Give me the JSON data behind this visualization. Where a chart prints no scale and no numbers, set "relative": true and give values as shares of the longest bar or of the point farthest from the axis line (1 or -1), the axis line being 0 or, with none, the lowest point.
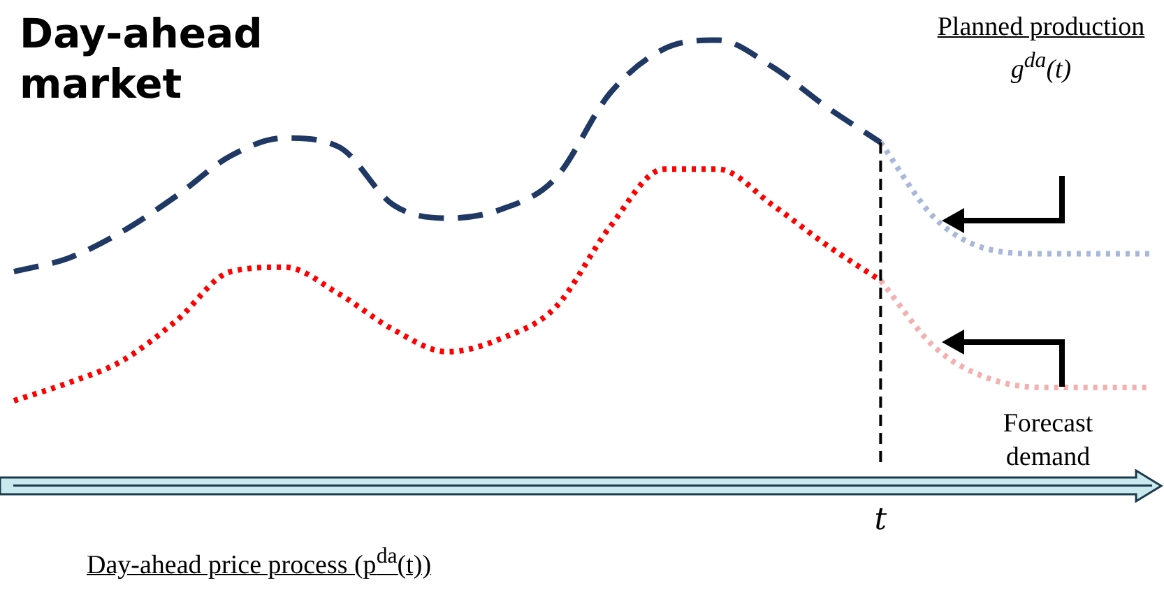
{
  "chart_data": {
    "type": "line",
    "relative": true,
    "title": "Day-ahead market",
    "xlabel": "Day-ahead price process (p$^{da}$(t))",
    "annotations": [
      "Planned production",
      "g$^{da}$(t)",
      "Forecast demand"
    ],
    "categories": [
      null,
      null,
      null,
      null,
      null,
      null,
      null,
      null,
      null,
      null,
      null,
      null,
      null,
      null,
      null,
      null,
      null,
      null,
      null,
      null,
      null,
      null
    ],
    "series": [
      {
        "color": "#1f3864",
        "line_style": "dashed",
        "values": [
          0.48,
          0.51,
          0.57,
          0.65,
          0.74,
          0.78,
          0.76,
          0.63,
          0.6,
          0.62,
          0.69,
          0.88,
          0.98,
          1,
          0.94,
          0.85,
          0.77,
          null,
          null,
          null,
          null,
          null
        ]
      },
      {
        "color": "#a9b8d8",
        "line_style": "dotted",
        "values": [
          null,
          null,
          null,
          null,
          null,
          null,
          null,
          null,
          null,
          null,
          null,
          null,
          null,
          null,
          null,
          null,
          0.77,
          0.6,
          0.53,
          0.52,
          0.52,
          0.52
        ]
      },
      {
        "color": "#ff0000",
        "line_style": "dotted",
        "values": [
          0.19,
          0.23,
          0.28,
          0.37,
          0.48,
          0.49,
          0.43,
          0.35,
          0.3,
          0.33,
          0.4,
          0.58,
          0.71,
          0.71,
          0.63,
          0.54,
          0.46,
          null,
          null,
          null,
          null,
          null
        ]
      },
      {
        "color": "#f4b0b0",
        "line_style": "dotted",
        "values": [
          null,
          null,
          null,
          null,
          null,
          null,
          null,
          null,
          null,
          null,
          null,
          null,
          null,
          null,
          null,
          null,
          0.46,
          0.31,
          0.24,
          0.22,
          0.22,
          0.22
        ]
      }
    ],
    "ref_lines": [
      {
        "axis": "x",
        "label": "t",
        "color": "#000000",
        "line_style": "dashed"
      }
    ],
    "legend": false,
    "grid": false,
    "marker": "none"
  }
}
